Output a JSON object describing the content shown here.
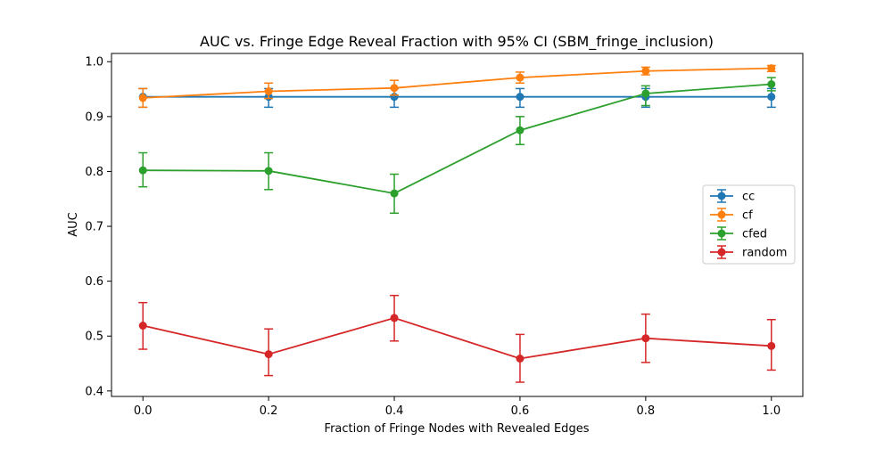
{
  "chart_data": {
    "type": "line",
    "title": "AUC vs. Fringe Edge Reveal Fraction with 95% CI (SBM_fringe_inclusion)",
    "xlabel": "Fraction of Fringe Nodes with Revealed Edges",
    "ylabel": "AUC",
    "xlim": [
      -0.05,
      1.05
    ],
    "ylim": [
      0.39,
      1.015
    ],
    "x": [
      0.0,
      0.2,
      0.4,
      0.6,
      0.8,
      1.0
    ],
    "x_tick_labels": [
      "0.0",
      "0.2",
      "0.4",
      "0.6",
      "0.8",
      "1.0"
    ],
    "y_ticks": [
      0.4,
      0.5,
      0.6,
      0.7,
      0.8,
      0.9,
      1.0
    ],
    "y_tick_labels": [
      "0.4",
      "0.5",
      "0.6",
      "0.7",
      "0.8",
      "0.9",
      "1.0"
    ],
    "grid": false,
    "legend_position": "center-right",
    "series": [
      {
        "name": "cc",
        "color": "#1f77b4",
        "values": [
          0.936,
          0.936,
          0.936,
          0.936,
          0.936,
          0.936
        ],
        "ci_low": [
          0.917,
          0.917,
          0.917,
          0.917,
          0.917,
          0.917
        ],
        "ci_high": [
          0.951,
          0.951,
          0.951,
          0.951,
          0.951,
          0.951
        ]
      },
      {
        "name": "cf",
        "color": "#ff7f0e",
        "values": [
          0.934,
          0.946,
          0.952,
          0.971,
          0.983,
          0.988
        ],
        "ci_low": [
          0.917,
          0.933,
          0.939,
          0.961,
          0.976,
          0.982
        ],
        "ci_high": [
          0.951,
          0.961,
          0.966,
          0.981,
          0.99,
          0.993
        ]
      },
      {
        "name": "cfed",
        "color": "#2ca02c",
        "values": [
          0.802,
          0.801,
          0.76,
          0.875,
          0.942,
          0.959
        ],
        "ci_low": [
          0.772,
          0.767,
          0.724,
          0.849,
          0.92,
          0.947
        ],
        "ci_high": [
          0.834,
          0.834,
          0.795,
          0.9,
          0.956,
          0.971
        ]
      },
      {
        "name": "random",
        "color": "#d62728",
        "values": [
          0.519,
          0.467,
          0.533,
          0.459,
          0.496,
          0.482
        ],
        "ci_low": [
          0.476,
          0.428,
          0.491,
          0.416,
          0.452,
          0.438
        ],
        "ci_high": [
          0.561,
          0.513,
          0.574,
          0.503,
          0.54,
          0.53
        ]
      }
    ]
  }
}
